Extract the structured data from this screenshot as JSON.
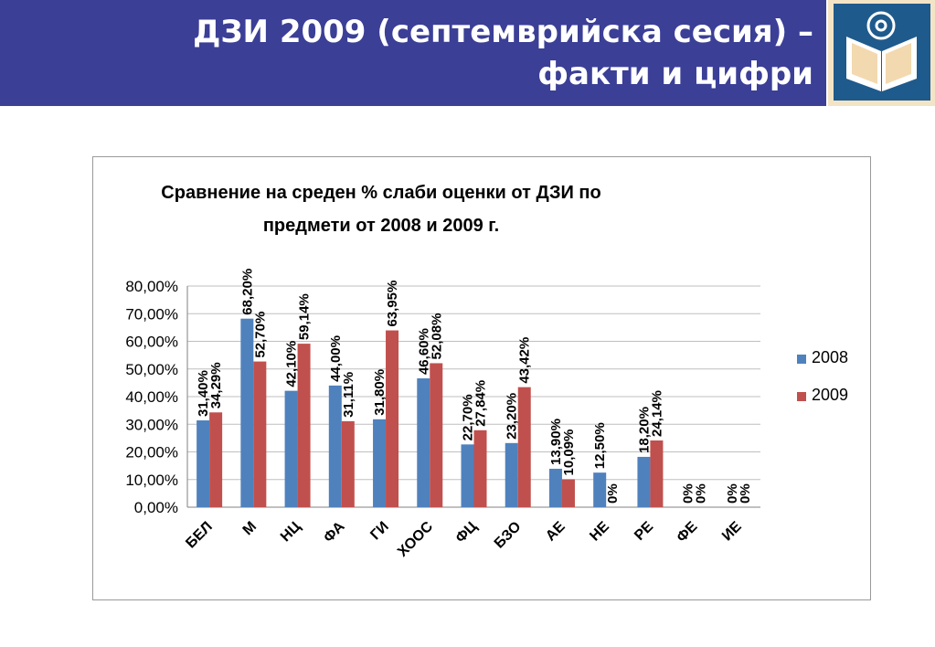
{
  "header": {
    "title_line1": "ДЗИ 2009 (септемврийска сесия) –",
    "title_line2": "факти и цифри",
    "logo_icon": "open-book-at-icon",
    "logo_colors": {
      "frame": "#1f5a8c",
      "book": "#f3e4c6",
      "at": "#ffffff"
    }
  },
  "colors": {
    "header_bg": "#3b3f96",
    "series_2008": "#4f81bd",
    "series_2009": "#c0504d",
    "grid": "#bfbfbf"
  },
  "chart_data": {
    "type": "bar",
    "title_line1": "Сравнение на среден % слаби оценки от ДЗИ по",
    "title_line2": "предмети от 2008 и 2009 г.",
    "categories": [
      "БЕЛ",
      "М",
      "НЦ",
      "ФА",
      "ГИ",
      "ХООС",
      "ФЦ",
      "БЗО",
      "АЕ",
      "НЕ",
      "РЕ",
      "ФЕ",
      "ИЕ"
    ],
    "series": [
      {
        "name": "2008",
        "values": [
          31.4,
          68.2,
          42.1,
          44.0,
          31.8,
          46.6,
          22.7,
          23.2,
          13.9,
          12.5,
          18.2,
          0,
          0
        ],
        "labels": [
          "31,40%",
          "68,20%",
          "42,10%",
          "44,00%",
          "31,80%",
          "46,60%",
          "22,70%",
          "23,20%",
          "13,90%",
          "12,50%",
          "18,20%",
          "0%",
          "0%"
        ]
      },
      {
        "name": "2009",
        "values": [
          34.29,
          52.7,
          59.14,
          31.11,
          63.95,
          52.08,
          27.84,
          43.42,
          10.09,
          0,
          24.14,
          0,
          0
        ],
        "labels": [
          "34,29%",
          "52,70%",
          "59,14%",
          "31,11%",
          "63,95%",
          "52,08%",
          "27,84%",
          "43,42%",
          "10,09%",
          "0%",
          "24,14%",
          "0%",
          "0%"
        ]
      }
    ],
    "yticks": [
      "0,00%",
      "10,00%",
      "20,00%",
      "30,00%",
      "40,00%",
      "50,00%",
      "60,00%",
      "70,00%",
      "80,00%"
    ],
    "ylim": [
      0,
      80
    ],
    "grid": true,
    "legend_position": "right"
  }
}
